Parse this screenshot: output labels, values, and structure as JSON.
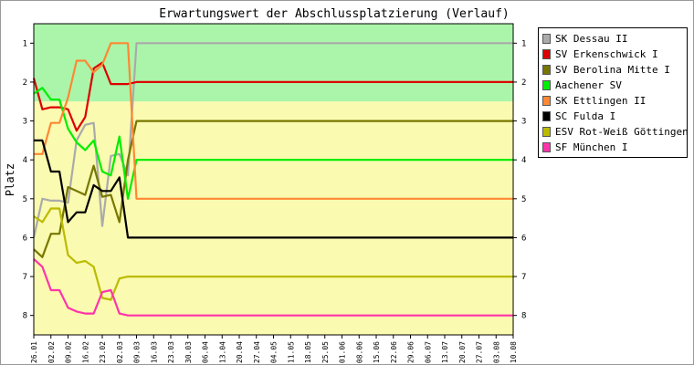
{
  "chart_data": {
    "type": "line",
    "title": "Erwartungswert der Abschlussplatzierung (Verlauf)",
    "ylabel": "Platz",
    "xlabel": "",
    "ylim": [
      0.5,
      8.5
    ],
    "y_inverted": true,
    "yticks": [
      1,
      2,
      3,
      4,
      5,
      6,
      7,
      8
    ],
    "grid": false,
    "legend_position": "top-right",
    "bands": [
      {
        "from": 0.5,
        "to": 2.5,
        "color": "#aaf5aa"
      },
      {
        "from": 2.5,
        "to": 8.5,
        "color": "#fafab0"
      }
    ],
    "categories": [
      "26.01",
      "02.02",
      "09.02",
      "16.02",
      "23.02",
      "02.03",
      "09.03",
      "16.03",
      "23.03",
      "30.03",
      "06.04",
      "13.04",
      "20.04",
      "27.04",
      "04.05",
      "11.05",
      "18.05",
      "25.05",
      "01.06",
      "08.06",
      "15.06",
      "22.06",
      "29.06",
      "06.07",
      "13.07",
      "20.07",
      "27.07",
      "03.08",
      "10.08"
    ],
    "x": [
      0,
      0.5,
      1,
      1.5,
      2,
      2.5,
      3,
      3.5,
      4,
      4.5,
      5,
      5.5,
      6,
      6.5,
      7,
      7.5,
      8,
      8.5,
      9,
      9.5,
      10,
      10.5,
      11,
      11.5,
      12,
      13,
      14,
      15,
      16,
      17,
      18,
      19,
      20,
      21,
      22,
      23,
      24,
      25,
      26,
      27,
      28
    ],
    "series": [
      {
        "name": "SK Dessau II",
        "color": "#aaaaaa",
        "values": [
          6.0,
          5.0,
          5.05,
          5.05,
          5.1,
          3.5,
          3.1,
          3.05,
          5.7,
          3.9,
          3.85,
          4.4,
          1.0,
          1.0,
          1.0,
          1.0,
          1.0,
          1.0,
          1.0,
          1.0,
          1.0,
          1.0,
          1.0,
          1.0,
          1.0,
          1.0,
          1.0,
          1.0,
          1.0,
          1.0,
          1.0,
          1.0,
          1.0,
          1.0,
          1.0,
          1.0,
          1.0,
          1.0,
          1.0,
          1.0,
          1.0
        ]
      },
      {
        "name": "SV Erkenschwick I",
        "color": "#dd0000",
        "values": [
          1.9,
          2.7,
          2.65,
          2.65,
          2.7,
          3.25,
          2.9,
          1.65,
          1.5,
          2.05,
          2.05,
          2.05,
          2.0,
          2.0,
          2.0,
          2.0,
          2.0,
          2.0,
          2.0,
          2.0,
          2.0,
          2.0,
          2.0,
          2.0,
          2.0,
          2.0,
          2.0,
          2.0,
          2.0,
          2.0,
          2.0,
          2.0,
          2.0,
          2.0,
          2.0,
          2.0,
          2.0,
          2.0,
          2.0,
          2.0,
          2.0
        ]
      },
      {
        "name": "SV Berolina Mitte I",
        "color": "#777700",
        "values": [
          6.3,
          6.5,
          5.9,
          5.9,
          4.7,
          4.8,
          4.9,
          4.15,
          4.95,
          4.9,
          5.6,
          4.0,
          3.0,
          3.0,
          3.0,
          3.0,
          3.0,
          3.0,
          3.0,
          3.0,
          3.0,
          3.0,
          3.0,
          3.0,
          3.0,
          3.0,
          3.0,
          3.0,
          3.0,
          3.0,
          3.0,
          3.0,
          3.0,
          3.0,
          3.0,
          3.0,
          3.0,
          3.0,
          3.0,
          3.0,
          3.0
        ]
      },
      {
        "name": "Aachener SV",
        "color": "#00ee00",
        "values": [
          2.3,
          2.15,
          2.45,
          2.45,
          3.2,
          3.55,
          3.75,
          3.5,
          4.3,
          4.4,
          3.4,
          5.0,
          4.0,
          4.0,
          4.0,
          4.0,
          4.0,
          4.0,
          4.0,
          4.0,
          4.0,
          4.0,
          4.0,
          4.0,
          4.0,
          4.0,
          4.0,
          4.0,
          4.0,
          4.0,
          4.0,
          4.0,
          4.0,
          4.0,
          4.0,
          4.0,
          4.0,
          4.0,
          4.0,
          4.0,
          4.0
        ]
      },
      {
        "name": "SK Ettlingen II",
        "color": "#ff8833",
        "values": [
          3.85,
          3.85,
          3.05,
          3.05,
          2.4,
          1.45,
          1.45,
          1.75,
          1.55,
          1.0,
          1.0,
          1.0,
          5.0,
          5.0,
          5.0,
          5.0,
          5.0,
          5.0,
          5.0,
          5.0,
          5.0,
          5.0,
          5.0,
          5.0,
          5.0,
          5.0,
          5.0,
          5.0,
          5.0,
          5.0,
          5.0,
          5.0,
          5.0,
          5.0,
          5.0,
          5.0,
          5.0,
          5.0,
          5.0,
          5.0,
          5.0
        ]
      },
      {
        "name": "SC Fulda I",
        "color": "#000000",
        "values": [
          3.5,
          3.5,
          4.3,
          4.3,
          5.6,
          5.35,
          5.35,
          4.65,
          4.8,
          4.8,
          4.45,
          6.0,
          6.0,
          6.0,
          6.0,
          6.0,
          6.0,
          6.0,
          6.0,
          6.0,
          6.0,
          6.0,
          6.0,
          6.0,
          6.0,
          6.0,
          6.0,
          6.0,
          6.0,
          6.0,
          6.0,
          6.0,
          6.0,
          6.0,
          6.0,
          6.0,
          6.0,
          6.0,
          6.0,
          6.0,
          6.0
        ]
      },
      {
        "name": "ESV Rot-Weiß Göttingen I",
        "color": "#bbbb00",
        "values": [
          5.45,
          5.6,
          5.25,
          5.25,
          6.45,
          6.65,
          6.6,
          6.75,
          7.55,
          7.6,
          7.05,
          7.0,
          7.0,
          7.0,
          7.0,
          7.0,
          7.0,
          7.0,
          7.0,
          7.0,
          7.0,
          7.0,
          7.0,
          7.0,
          7.0,
          7.0,
          7.0,
          7.0,
          7.0,
          7.0,
          7.0,
          7.0,
          7.0,
          7.0,
          7.0,
          7.0,
          7.0,
          7.0,
          7.0,
          7.0,
          7.0
        ]
      },
      {
        "name": "SF München I",
        "color": "#ff33aa",
        "values": [
          6.55,
          6.75,
          7.35,
          7.35,
          7.8,
          7.9,
          7.95,
          7.95,
          7.4,
          7.35,
          7.95,
          8.0,
          8.0,
          8.0,
          8.0,
          8.0,
          8.0,
          8.0,
          8.0,
          8.0,
          8.0,
          8.0,
          8.0,
          8.0,
          8.0,
          8.0,
          8.0,
          8.0,
          8.0,
          8.0,
          8.0,
          8.0,
          8.0,
          8.0,
          8.0,
          8.0,
          8.0,
          8.0,
          8.0,
          8.0,
          8.0
        ]
      }
    ]
  }
}
